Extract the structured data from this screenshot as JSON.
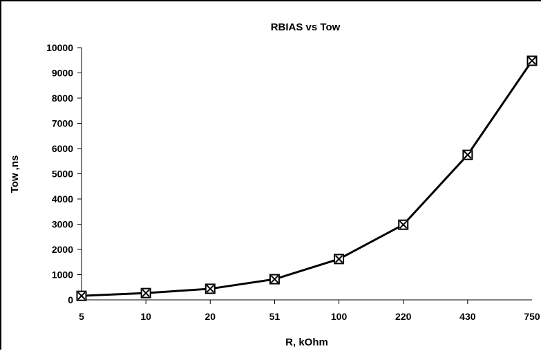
{
  "chart_data": {
    "type": "line",
    "title": "RBIAS vs Tow",
    "xlabel": "R, kOhm",
    "ylabel": "Tow ,ns",
    "categories": [
      "5",
      "10",
      "20",
      "51",
      "100",
      "220",
      "430",
      "750"
    ],
    "series": [
      {
        "values": [
          160,
          270,
          440,
          820,
          1620,
          2980,
          5750,
          9480
        ]
      }
    ],
    "ylim": [
      0,
      10000
    ],
    "yticks": [
      0,
      1000,
      2000,
      3000,
      4000,
      5000,
      6000,
      7000,
      8000,
      9000,
      10000
    ],
    "grid": false,
    "marker": "x-square",
    "line_color": "#000000"
  }
}
